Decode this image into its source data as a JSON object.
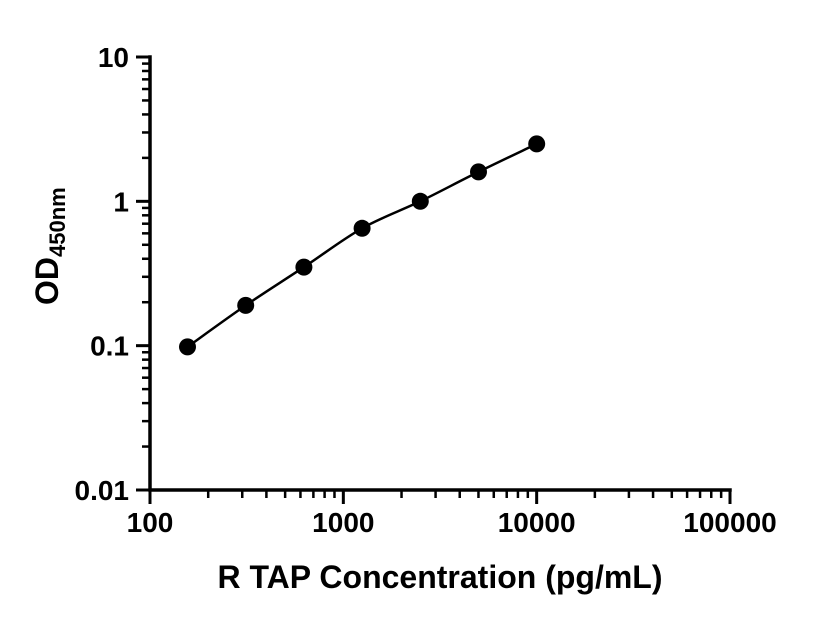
{
  "chart_data": {
    "type": "scatter",
    "title": "",
    "xlabel": "R TAP Concentration (pg/mL)",
    "ylabel_main": "OD",
    "ylabel_sub": "450nm",
    "ylabel": "OD450nm",
    "x_scale": "log",
    "y_scale": "log",
    "xlim": [
      100,
      100000
    ],
    "ylim": [
      0.01,
      10
    ],
    "x_ticks": [
      100,
      1000,
      10000,
      100000
    ],
    "x_tick_labels": [
      "100",
      "1000",
      "10000",
      "100000"
    ],
    "y_ticks": [
      10,
      1,
      0.1,
      0.01
    ],
    "y_tick_labels": [
      "10",
      "1",
      "0.1",
      "0.01"
    ],
    "x": [
      156.25,
      312.5,
      625,
      1250,
      2500,
      5000,
      10000
    ],
    "y": [
      0.098,
      0.19,
      0.35,
      0.65,
      1.0,
      1.6,
      2.5
    ],
    "line": true,
    "grid": false,
    "legend": false,
    "marker": "circle",
    "marker_color": "#000000",
    "line_color": "#000000",
    "axis_color": "#000000",
    "background_color": "#ffffff"
  }
}
